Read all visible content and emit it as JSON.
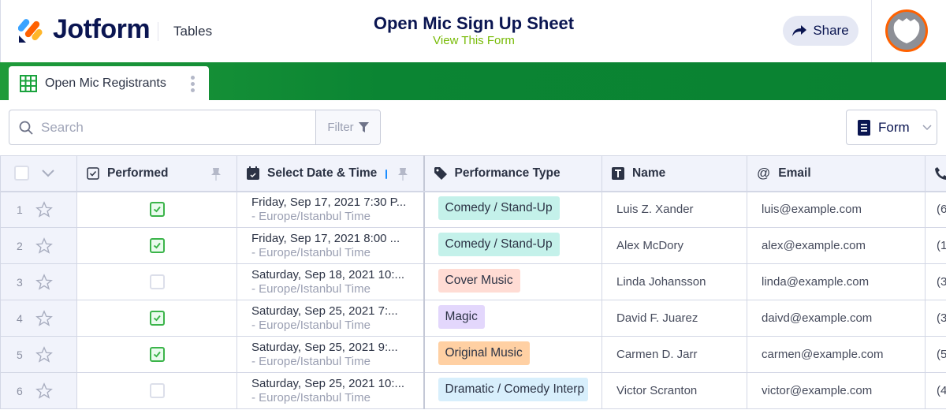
{
  "header": {
    "brand": "Jotform",
    "product": "Tables",
    "title": "Open Mic Sign Up Sheet",
    "view_form": "View This Form",
    "share": "Share"
  },
  "tab": {
    "label": "Open Mic Registrants"
  },
  "toolbar": {
    "search_placeholder": "Search",
    "filter": "Filter",
    "form": "Form"
  },
  "columns": [
    "Performed",
    "Select Date & Time",
    "Performance Type",
    "Name",
    "Email"
  ],
  "colors": {
    "green": "#0b8533",
    "brand_navy": "#0a1551",
    "view_link": "#78bb07",
    "check": "#3bb44a"
  },
  "rows": [
    {
      "n": "1",
      "performed": true,
      "date": "Friday, Sep 17, 2021 7:30 P...",
      "tz": "- Europe/Istanbul Time",
      "type": "Comedy / Stand-Up",
      "type_color": "#c4f1ea",
      "name": "Luis Z. Xander",
      "email": "luis@example.com",
      "phone": "(6"
    },
    {
      "n": "2",
      "performed": true,
      "date": "Friday, Sep 17, 2021 8:00 ...",
      "tz": "- Europe/Istanbul Time",
      "type": "Comedy / Stand-Up",
      "type_color": "#c4f1ea",
      "name": "Alex McDory",
      "email": "alex@example.com",
      "phone": "(1"
    },
    {
      "n": "3",
      "performed": false,
      "date": "Saturday, Sep 18, 2021 10:...",
      "tz": "- Europe/Istanbul Time",
      "type": "Cover Music",
      "type_color": "#ffdcd4",
      "name": "Linda Johansson",
      "email": "linda@example.com",
      "phone": "(3"
    },
    {
      "n": "4",
      "performed": true,
      "date": "Saturday, Sep 25, 2021 7:...",
      "tz": "- Europe/Istanbul Time",
      "type": "Magic",
      "type_color": "#e3d7fc",
      "name": "David F. Juarez",
      "email": "daivd@example.com",
      "phone": "(3"
    },
    {
      "n": "5",
      "performed": true,
      "date": "Saturday, Sep 25, 2021 9:...",
      "tz": "- Europe/Istanbul Time",
      "type": "Original Music",
      "type_color": "#ffd0a3",
      "name": "Carmen D. Jarr",
      "email": "carmen@example.com",
      "phone": "(5"
    },
    {
      "n": "6",
      "performed": false,
      "date": "Saturday, Sep 25, 2021 10:...",
      "tz": "- Europe/Istanbul Time",
      "type": "Dramatic / Comedy Interp",
      "type_color": "#d8effc",
      "name": "Victor Scranton",
      "email": "victor@example.com",
      "phone": "(4"
    }
  ]
}
